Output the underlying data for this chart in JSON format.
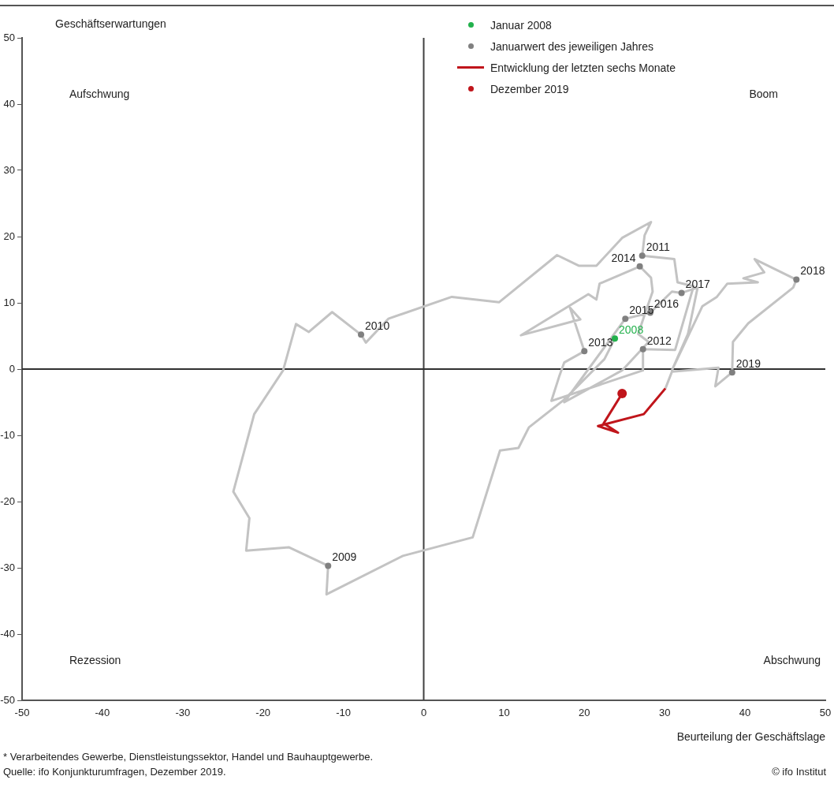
{
  "chart_data": {
    "type": "line",
    "xlabel": "Beurteilung der Geschäftslage",
    "ylabel": "Geschäftserwartungen",
    "xlim": [
      -50,
      50
    ],
    "xticks": [
      -50,
      -40,
      -30,
      -20,
      -10,
      0,
      10,
      20,
      30,
      40,
      50
    ],
    "ylim": [
      -50,
      50
    ],
    "yticks": [
      -50,
      -40,
      -30,
      -20,
      -10,
      0,
      10,
      20,
      30,
      40,
      50
    ],
    "grid": false,
    "legend": "top right",
    "ref_lines": [
      {
        "axis": "x",
        "value": 0,
        "color": "#404040"
      },
      {
        "axis": "y",
        "value": 0,
        "color": "#303030"
      }
    ],
    "series": [
      {
        "type": "line",
        "color": "#c3c3c3",
        "marker": "none",
        "x": [
          23.8,
          22.5,
          17.5,
          13.1,
          11.8,
          9.5,
          6.1,
          -2.6,
          -12.1,
          -11.9,
          -16.8,
          -22.1,
          -21.7,
          -23.7,
          -21.1,
          -17.5,
          -15.9,
          -14.3,
          -11.4,
          -7.8,
          -7.2,
          -4.4,
          3.5,
          9.4,
          16.6,
          19.3,
          21.5,
          24.7,
          28.3,
          27.5,
          27.2,
          31.2,
          31.6,
          33.6,
          31.3,
          27.3,
          27.3,
          15.9,
          16.9,
          17.5,
          20.0,
          18.2,
          19.5,
          12.1,
          20.5,
          21.5,
          21.9,
          26.9,
          28.3,
          28.5,
          27.7,
          26.7,
          28.0,
          24.7,
          17.5,
          25.1,
          28.2,
          30.9,
          32.1,
          34.1,
          32.9,
          30.9,
          34.7,
          36.5,
          37.8,
          41.6,
          39.8,
          42.4,
          41.2,
          46.4,
          46.0,
          40.4,
          38.5,
          38.4,
          36.3,
          36.7,
          30.9,
          30.1
        ],
        "values": [
          4.6,
          1.5,
          -4.6,
          -8.8,
          -11.9,
          -12.3,
          -25.4,
          -28.2,
          -34.0,
          -29.7,
          -26.9,
          -27.4,
          -22.5,
          -18.5,
          -6.8,
          -0.2,
          6.8,
          5.6,
          8.6,
          5.2,
          4.0,
          7.6,
          10.9,
          10.1,
          17.2,
          15.6,
          15.6,
          19.8,
          22.2,
          20.2,
          17.1,
          16.6,
          13.1,
          12.5,
          2.9,
          3.0,
          -0.2,
          -4.8,
          -1.0,
          1.0,
          2.7,
          9.3,
          7.5,
          5.1,
          11.3,
          10.5,
          12.9,
          15.5,
          13.8,
          11.7,
          8.9,
          5.3,
          4.1,
          -0.2,
          -5.0,
          7.6,
          8.5,
          11.7,
          11.5,
          12.3,
          5.3,
          -0.2,
          9.5,
          10.9,
          12.9,
          13.1,
          13.7,
          14.6,
          16.6,
          13.5,
          12.3,
          6.9,
          4.1,
          -0.5,
          -2.6,
          0.2,
          -0.4,
          -2.9
        ]
      },
      {
        "type": "line",
        "name": "Entwicklung der letzten sechs Monate",
        "color": "#c0151b",
        "marker": "none",
        "x": [
          30.1,
          27.4,
          21.7,
          24.2,
          22.4,
          24.7
        ],
        "values": [
          -2.9,
          -6.8,
          -8.6,
          -9.6,
          -8.2,
          -3.7
        ]
      },
      {
        "type": "scatter",
        "name": "Januarwert des jeweiligen Jahres",
        "color": "#808080",
        "marker": "circle",
        "x": [
          -11.9,
          -7.8,
          27.2,
          27.3,
          20.0,
          26.9,
          25.1,
          28.2,
          32.1,
          46.4,
          38.4
        ],
        "values": [
          -29.7,
          5.2,
          17.1,
          3.0,
          2.7,
          15.5,
          7.6,
          8.5,
          11.5,
          13.5,
          -0.5
        ]
      },
      {
        "type": "scatter",
        "name": "Januar 2008",
        "color": "#22b14c",
        "marker": "circle",
        "x": [
          23.8
        ],
        "values": [
          4.6
        ]
      },
      {
        "type": "scatter",
        "name": "Dezember 2019",
        "color": "#c0151b",
        "marker": "circle",
        "x": [
          24.7
        ],
        "values": [
          -3.7
        ]
      }
    ],
    "annotations": [
      "Aufschwung",
      "Boom",
      "Rezession",
      "Abschwung",
      {
        "text": "2008",
        "x": 23.8,
        "y": 4.6
      },
      {
        "text": "2009",
        "x": -11.9,
        "y": -29.7
      },
      {
        "text": "2010",
        "x": -7.8,
        "y": 5.2
      },
      {
        "text": "2011",
        "x": 27.2,
        "y": 17.1
      },
      {
        "text": "2012",
        "x": 27.3,
        "y": 3.0
      },
      {
        "text": "2013",
        "x": 20.0,
        "y": 2.7
      },
      {
        "text": "2014",
        "x": 26.9,
        "y": 15.5
      },
      {
        "text": "2015",
        "x": 25.1,
        "y": 7.6
      },
      {
        "text": "2016",
        "x": 28.2,
        "y": 8.5
      },
      {
        "text": "2017",
        "x": 32.1,
        "y": 11.5
      },
      {
        "text": "2018",
        "x": 46.4,
        "y": 13.5
      },
      {
        "text": "2019",
        "x": 38.4,
        "y": -0.5
      },
      "* Verarbeitendes Gewerbe, Dienstleistungssektor, Handel und Bauhauptgewerbe.",
      "Quelle: ifo Konjunkturumfragen, Dezember 2019.",
      "© ifo Institut"
    ]
  }
}
